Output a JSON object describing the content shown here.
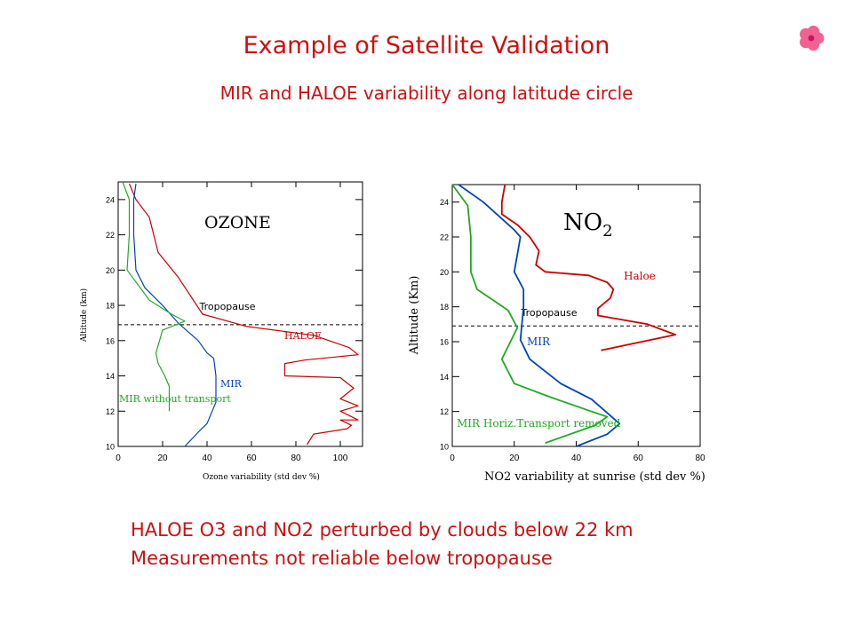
{
  "header": {
    "title": "Example of Satellite Validation",
    "subtitle": "MIR and HALOE variability along latitude circle"
  },
  "notes": [
    "HALOE O3 and NO2  perturbed by clouds below 22 km",
    "Measurements not reliable below tropopause"
  ],
  "decoration": {
    "icon": "flower-icon",
    "color": "#f06292"
  },
  "chart_data": [
    {
      "type": "line",
      "title": "OZONE",
      "xlabel": "Ozone variability  (std dev %)",
      "ylabel": "Altitude (km)",
      "xlim": [
        0,
        110
      ],
      "ylim": [
        10,
        25
      ],
      "xticks": [
        0,
        20,
        40,
        60,
        80,
        100
      ],
      "yticks": [
        10,
        12,
        14,
        16,
        18,
        20,
        22,
        24
      ],
      "tropopause": {
        "label": "Tropopause",
        "y": 16.9
      },
      "series": [
        {
          "name": "HALOE",
          "color": "#cc0000",
          "x": [
            5,
            8,
            14,
            16,
            18,
            27,
            38,
            58,
            88,
            104,
            108,
            84,
            75,
            75,
            100,
            106,
            100,
            108,
            100,
            108,
            100,
            105,
            103,
            88,
            85
          ],
          "y": [
            24.9,
            24,
            23,
            22,
            21,
            19.6,
            17.5,
            16.8,
            16.3,
            15.6,
            15.2,
            14.9,
            14.7,
            14,
            13.9,
            13.3,
            12.7,
            12.3,
            12,
            11.5,
            11.5,
            11.2,
            11,
            10.7,
            10.1
          ]
        },
        {
          "name": "MIR",
          "color": "#0044bb",
          "x": [
            8,
            7,
            7,
            8,
            12,
            20,
            27,
            36,
            40,
            43,
            44,
            44,
            40,
            36,
            30
          ],
          "y": [
            24.9,
            24,
            22,
            20,
            19,
            18,
            17,
            16,
            15.3,
            15,
            14,
            12.5,
            11.3,
            10.8,
            10
          ]
        },
        {
          "name": "MIR without transport",
          "color": "#22aa22",
          "x": [
            2,
            5,
            5,
            4,
            7,
            14,
            24,
            30,
            20,
            17,
            18,
            21,
            23,
            23
          ],
          "y": [
            25,
            24,
            22,
            20,
            19.5,
            18.3,
            17.5,
            17.1,
            16.6,
            15.3,
            14.7,
            14,
            13.4,
            12
          ]
        }
      ]
    },
    {
      "type": "line",
      "title": "NO",
      "title_subscript": "2",
      "xlabel": "NO2 variability at sunrise (std dev %)",
      "ylabel": "Altitude (Km)",
      "xlim": [
        0,
        80
      ],
      "ylim": [
        10,
        25
      ],
      "xticks": [
        0,
        20,
        40,
        60,
        80
      ],
      "yticks": [
        10,
        12,
        14,
        16,
        18,
        20,
        22,
        24
      ],
      "tropopause": {
        "label": "Tropopause",
        "y": 16.9
      },
      "series": [
        {
          "name": "Haloe",
          "color": "#cc0000",
          "x": [
            17,
            16,
            16,
            21,
            25,
            28,
            27,
            30,
            44,
            50,
            52,
            51,
            47,
            47,
            63,
            72,
            48
          ],
          "y": [
            25,
            24,
            23.3,
            22.7,
            22,
            21.2,
            20.4,
            20,
            19.8,
            19.4,
            19,
            18.5,
            17.9,
            17.5,
            17,
            16.4,
            15.5
          ]
        },
        {
          "name": "MIR",
          "color": "#0044bb",
          "x": [
            2,
            10,
            20,
            22,
            20,
            23,
            23,
            22,
            25,
            35,
            45,
            54,
            50,
            40
          ],
          "y": [
            25,
            24,
            22.4,
            22,
            20,
            19,
            18,
            16.1,
            15,
            13.6,
            12.7,
            11.3,
            10.7,
            10
          ]
        },
        {
          "name": "MIR Horiz.Transport removed",
          "color": "#22aa22",
          "x": [
            0,
            5,
            6,
            6,
            8,
            18,
            21,
            16,
            20,
            32,
            45,
            50,
            46,
            30
          ],
          "y": [
            25,
            23.8,
            22,
            20,
            19,
            17.8,
            16.8,
            15,
            13.6,
            12.8,
            12,
            11.7,
            11.2,
            10.2
          ]
        }
      ]
    }
  ]
}
